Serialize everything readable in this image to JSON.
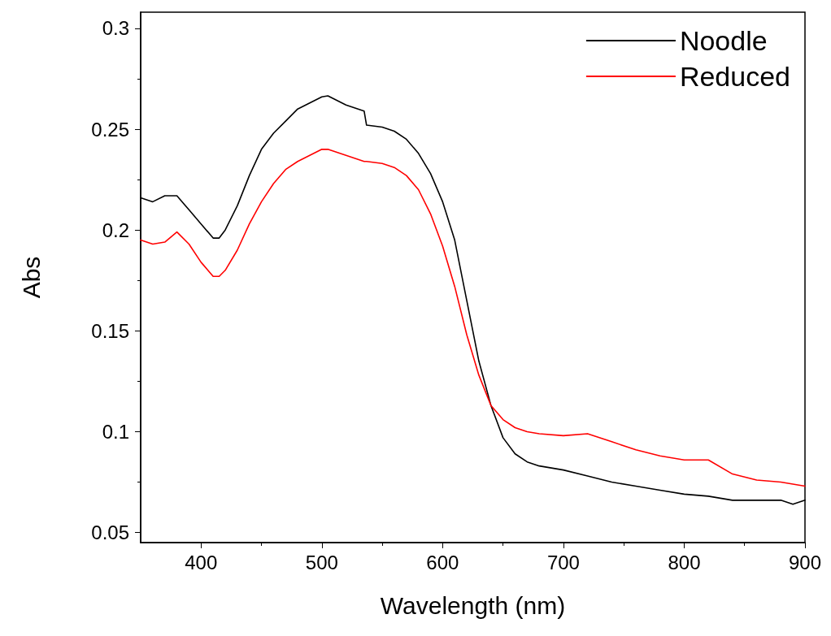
{
  "chart_data": {
    "type": "line",
    "xlabel": "Wavelength (nm)",
    "ylabel": "Abs",
    "x": [
      350,
      360,
      370,
      380,
      390,
      400,
      410,
      415,
      420,
      430,
      440,
      450,
      460,
      470,
      480,
      490,
      500,
      505,
      510,
      520,
      530,
      535,
      537,
      550,
      560,
      570,
      580,
      590,
      600,
      610,
      620,
      630,
      640,
      650,
      660,
      670,
      680,
      700,
      720,
      740,
      760,
      780,
      800,
      820,
      840,
      860,
      880,
      890,
      900
    ],
    "series": [
      {
        "name": "Noodle",
        "color": "#000000",
        "values": [
          0.216,
          0.214,
          0.217,
          0.217,
          0.21,
          0.203,
          0.196,
          0.196,
          0.2,
          0.212,
          0.227,
          0.24,
          0.248,
          0.254,
          0.26,
          0.263,
          0.266,
          0.2665,
          0.265,
          0.262,
          0.26,
          0.259,
          0.252,
          0.251,
          0.249,
          0.245,
          0.238,
          0.228,
          0.214,
          0.195,
          0.165,
          0.135,
          0.113,
          0.097,
          0.089,
          0.085,
          0.083,
          0.081,
          0.078,
          0.075,
          0.073,
          0.071,
          0.069,
          0.068,
          0.066,
          0.066,
          0.066,
          0.064,
          0.066
        ]
      },
      {
        "name": "Reduced",
        "color": "#ff0000",
        "values": [
          0.195,
          0.193,
          0.194,
          0.199,
          0.193,
          0.184,
          0.177,
          0.177,
          0.18,
          0.19,
          0.203,
          0.214,
          0.223,
          0.23,
          0.234,
          0.237,
          0.24,
          0.24,
          0.239,
          0.237,
          0.235,
          0.234,
          0.234,
          0.233,
          0.231,
          0.227,
          0.22,
          0.208,
          0.192,
          0.172,
          0.148,
          0.128,
          0.113,
          0.106,
          0.102,
          0.1,
          0.099,
          0.098,
          0.099,
          0.095,
          0.091,
          0.088,
          0.086,
          0.086,
          0.079,
          0.076,
          0.075,
          0.074,
          0.073
        ]
      }
    ],
    "xlim": [
      350,
      900
    ],
    "xticks": [
      400,
      500,
      600,
      700,
      800,
      900
    ],
    "ylim": [
      0.045,
      0.308
    ],
    "yticks": [
      0.05,
      0.1,
      0.15,
      0.2,
      0.25,
      0.3
    ],
    "legend": "top right",
    "marker": "none",
    "line_style": "solid",
    "grid": false
  }
}
